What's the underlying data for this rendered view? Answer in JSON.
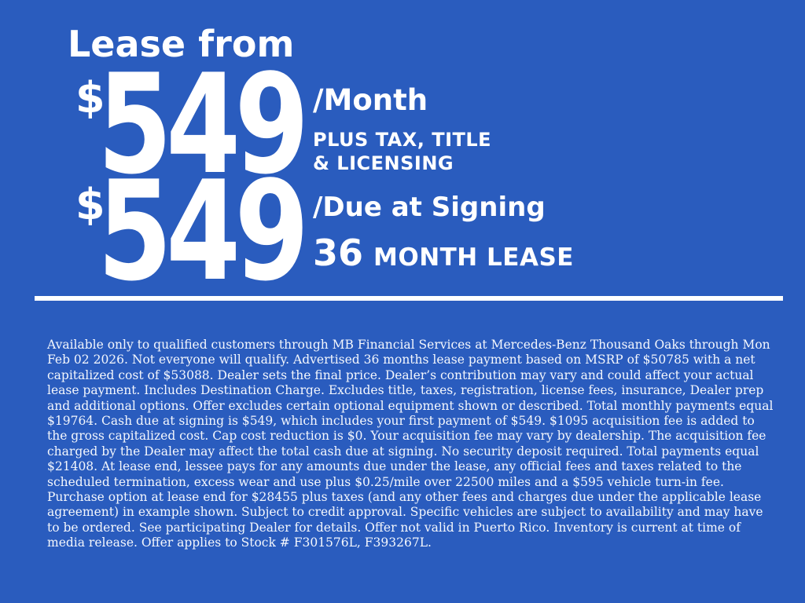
{
  "colors": {
    "background": "#2a5cbe",
    "foreground": "#ffffff"
  },
  "headline": "Lease from",
  "monthly_offer": {
    "currency": "$",
    "amount": "549",
    "unit": "/Month",
    "qualifier_line1": "PLUS TAX, TITLE",
    "qualifier_line2": "& LICENSING"
  },
  "signing_offer": {
    "currency": "$",
    "amount": "549",
    "unit": "/Due at Signing",
    "term_value": "36",
    "term_label": "MONTH LEASE"
  },
  "disclaimer": "Available only to qualified customers through MB Financial Services at Mercedes-Benz Thousand Oaks through Mon Feb 02 2026. Not everyone will qualify. Advertised 36 months lease payment based on MSRP of $50785 with a net capitalized cost of $53088. Dealer sets the final price. Dealer’s contribution may vary and could affect your actual lease payment. Includes Destination Charge. Excludes title, taxes, registration, license fees, insurance, Dealer prep and additional options. Offer excludes certain optional equipment shown or described. Total monthly payments equal $19764. Cash due at signing is $549, which includes your first payment of $549. $1095 acquisition fee is added to the gross capitalized cost. Cap cost reduction is $0. Your acquisition fee may vary by dealership. The acquisition fee charged by the Dealer may affect the total cash due at signing. No security deposit required. Total payments equal $21408. At lease end, lessee pays for any amounts due under the lease, any official fees and taxes related to the scheduled termination, excess wear and use plus $0.25/mile over 22500 miles and a $595 vehicle turn-in fee. Purchase option at lease end for $28455 plus taxes (and any other fees and charges due under the applicable lease agreement) in example shown. Subject to credit approval. Specific vehicles are subject to availability and may have to be ordered. See participating Dealer for details. Offer not valid in Puerto Rico. Inventory is current at time of media release. Offer applies to Stock # F301576L, F393267L."
}
